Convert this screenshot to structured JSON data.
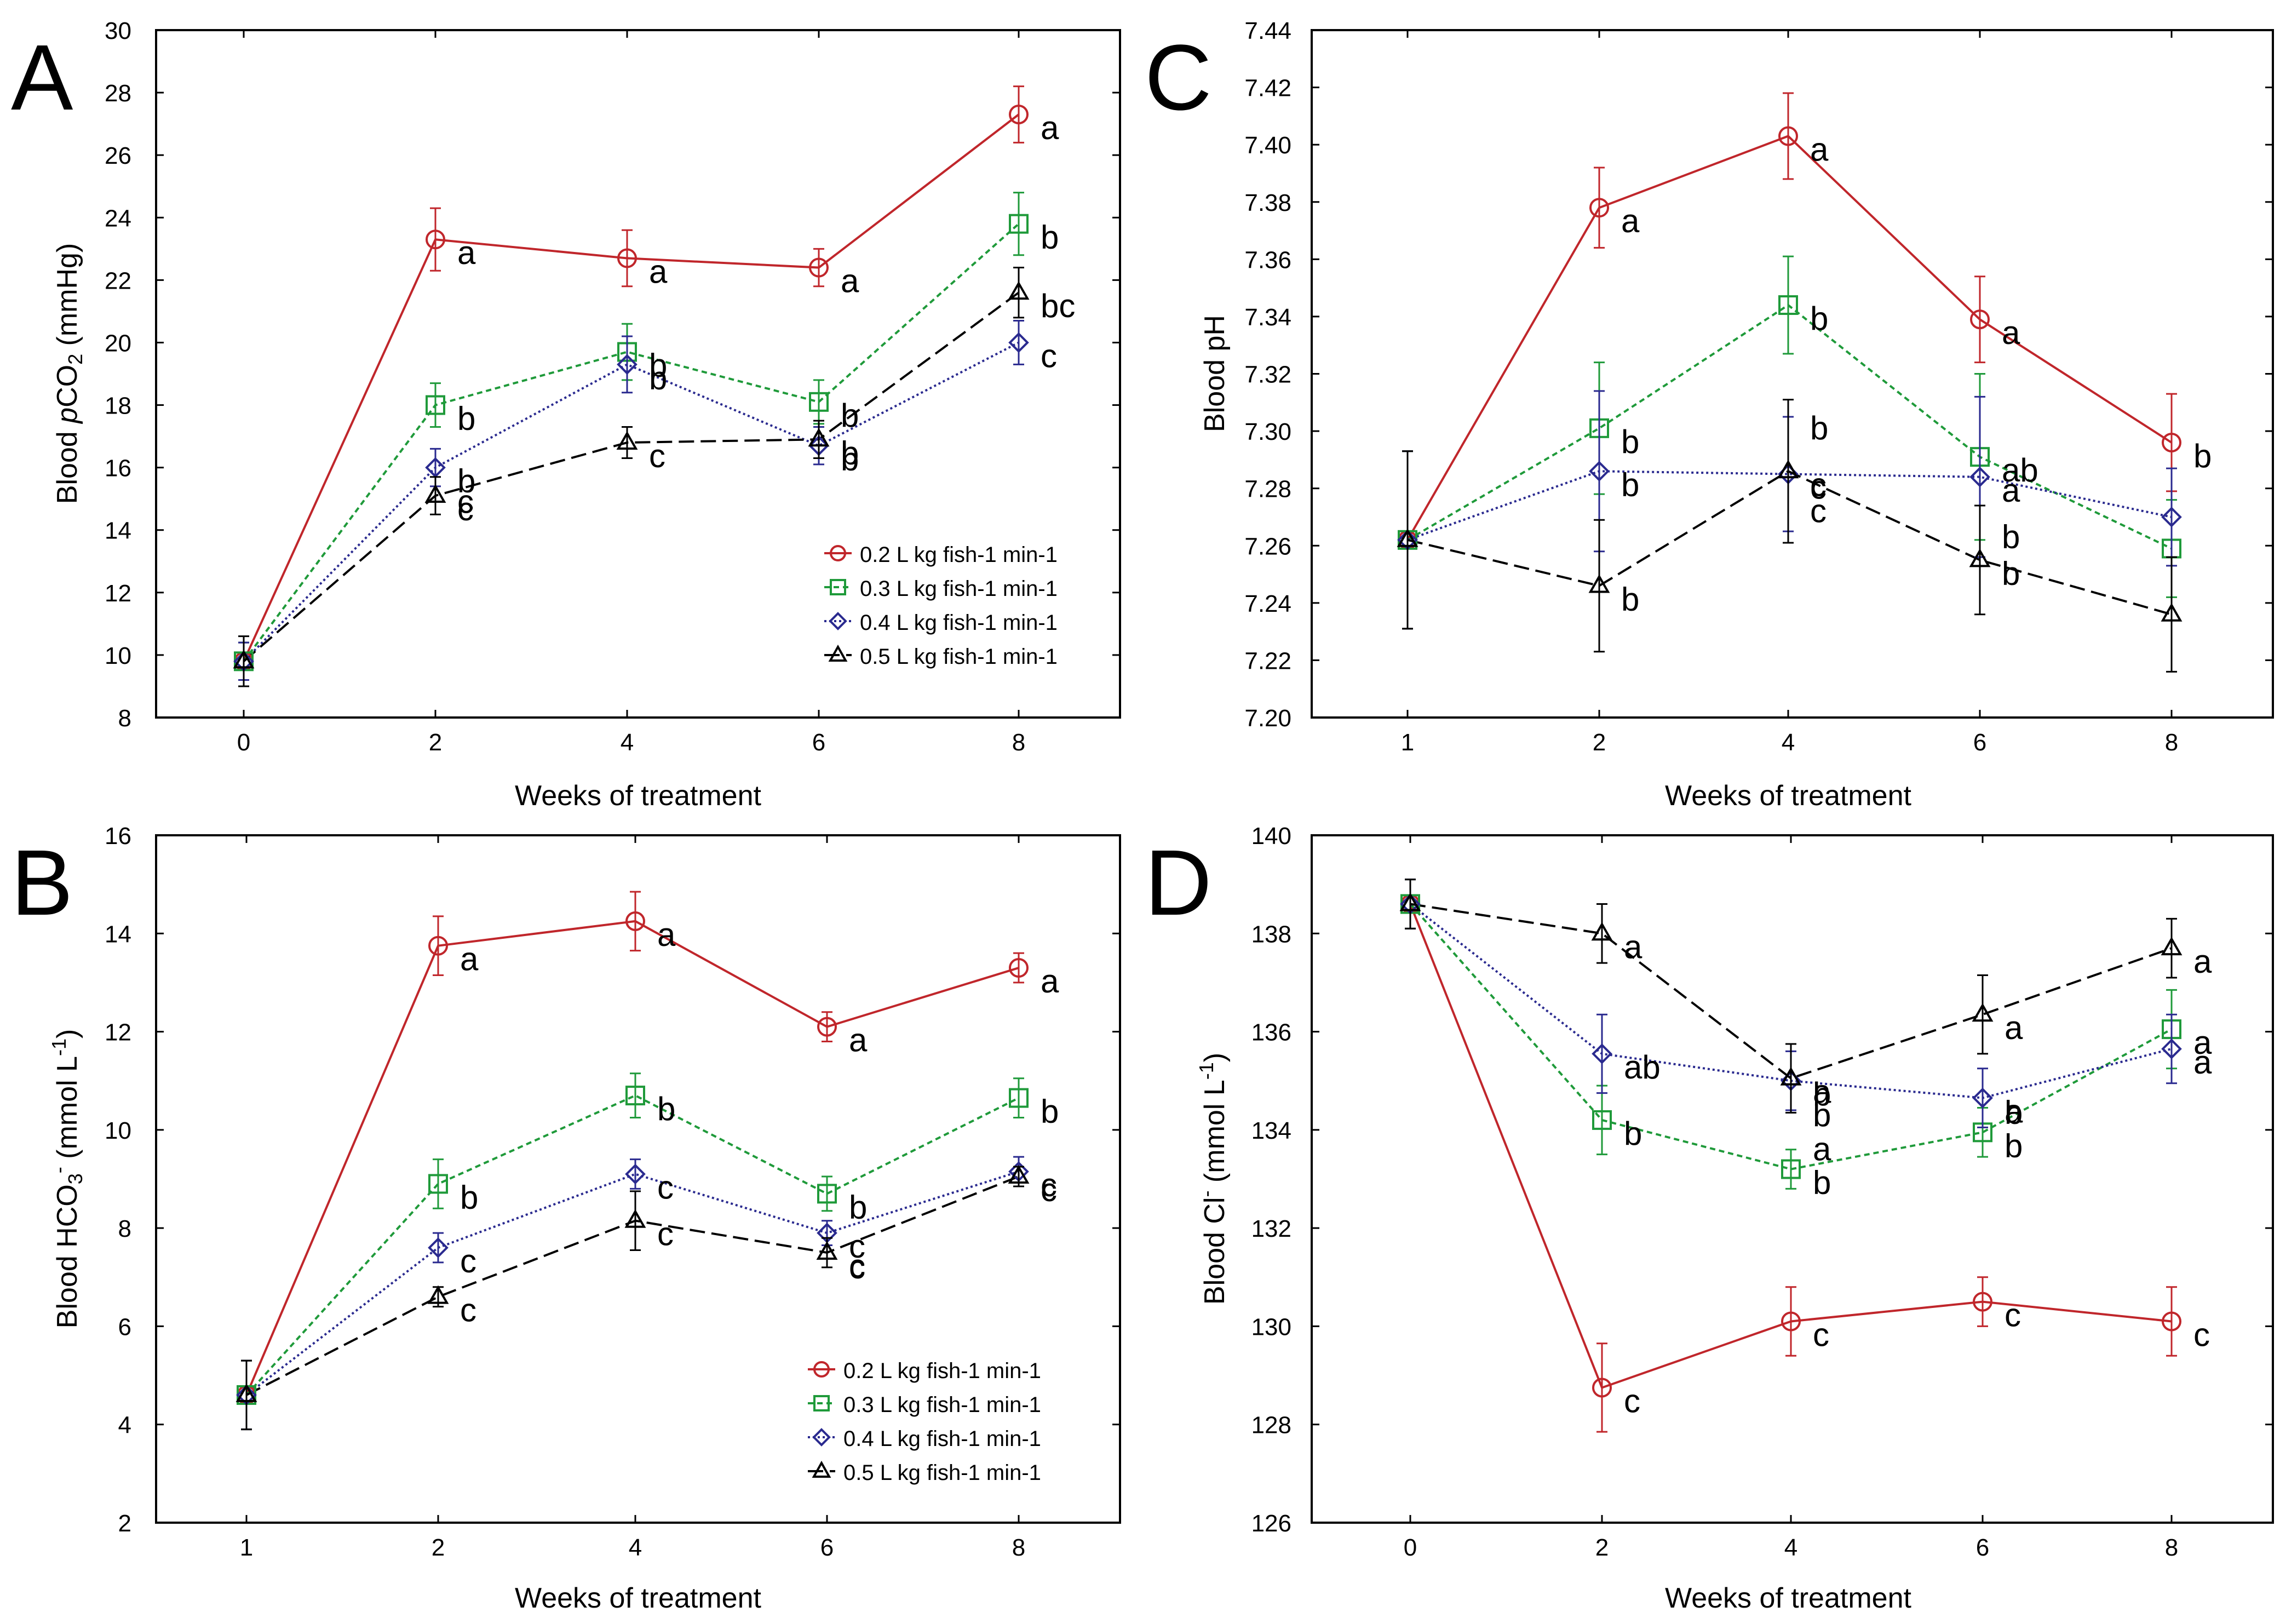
{
  "legend_entries": [
    "0.2 L kg fish-1 min-1",
    "0.3 L kg fish-1 min-1",
    "0.4 L kg fish-1 min-1",
    "0.5 L kg fish-1 min-1"
  ],
  "series_colors": [
    "#c0262b",
    "#1f9a3a",
    "#2a2a8f",
    "#000000"
  ],
  "chart_data": [
    {
      "type": "line",
      "panel_letter": "A",
      "xlabel": "Weeks of treatment",
      "ylabel": "Blood pCO2 (mmHg)",
      "ylabel_parts": {
        "pre": "Blood ",
        "italic": "p",
        "main": "CO",
        "sub": "2",
        "post": " (mmHg)"
      },
      "x_ticks": [
        0,
        2,
        4,
        6,
        8
      ],
      "ylim": [
        8,
        30
      ],
      "y_ticks": [
        8,
        10,
        12,
        14,
        16,
        18,
        20,
        22,
        24,
        26,
        28,
        30
      ],
      "tick_decimals": 0,
      "has_legend": true,
      "series": [
        {
          "name": "0.2 L kg fish-1 min-1",
          "values": [
            9.8,
            23.3,
            22.7,
            22.4,
            27.3
          ],
          "err": [
            0.6,
            1.0,
            0.9,
            0.6,
            0.9
          ],
          "labels": [
            "",
            "a",
            "a",
            "a",
            "a"
          ]
        },
        {
          "name": "0.3 L kg fish-1 min-1",
          "values": [
            9.8,
            18.0,
            19.7,
            18.1,
            23.8
          ],
          "err": [
            0.6,
            0.7,
            0.9,
            0.7,
            1.0
          ],
          "labels": [
            "",
            "b",
            "b",
            "b",
            "b"
          ]
        },
        {
          "name": "0.4 L kg fish-1 min-1",
          "values": [
            9.8,
            16.0,
            19.3,
            16.7,
            20.0
          ],
          "err": [
            0.6,
            0.6,
            0.9,
            0.6,
            0.7
          ],
          "labels": [
            "",
            "b",
            "b",
            "b",
            "c"
          ]
        },
        {
          "name": "0.5 L kg fish-1 min-1",
          "values": [
            9.8,
            15.1,
            16.8,
            16.9,
            21.6
          ],
          "err": [
            0.8,
            0.6,
            0.5,
            0.6,
            0.8
          ],
          "labels": [
            "",
            "c",
            "c",
            "b",
            "bc"
          ]
        }
      ]
    },
    {
      "type": "line",
      "panel_letter": "B",
      "xlabel": "Weeks of treatment",
      "ylabel": "Blood HCO3- (mmol L-1)",
      "ylabel_parts": {
        "pre": "Blood ",
        "main": "HCO",
        "sub": "3",
        "sup": "-",
        "post": " (mmol L",
        "sup2": "-1",
        "end": ")"
      },
      "x_ticks": [
        1,
        2,
        4,
        6,
        8
      ],
      "ylim": [
        2,
        16
      ],
      "y_ticks": [
        2,
        4,
        6,
        8,
        10,
        12,
        14,
        16
      ],
      "tick_decimals": 0,
      "has_legend": true,
      "series": [
        {
          "name": "0.2 L kg fish-1 min-1",
          "values": [
            4.6,
            13.75,
            14.25,
            12.1,
            13.3
          ],
          "err": [
            0.7,
            0.6,
            0.6,
            0.3,
            0.3
          ],
          "labels": [
            "",
            "a",
            "a",
            "a",
            "a"
          ]
        },
        {
          "name": "0.3 L kg fish-1 min-1",
          "values": [
            4.6,
            8.9,
            10.7,
            8.7,
            10.65
          ],
          "err": [
            0.7,
            0.5,
            0.45,
            0.35,
            0.4
          ],
          "labels": [
            "",
            "b",
            "b",
            "b",
            "b"
          ]
        },
        {
          "name": "0.4 L kg fish-1 min-1",
          "values": [
            4.6,
            7.6,
            9.1,
            7.9,
            9.15
          ],
          "err": [
            0.7,
            0.3,
            0.3,
            0.25,
            0.3
          ],
          "labels": [
            "",
            "c",
            "c",
            "c",
            "c"
          ]
        },
        {
          "name": "0.5 L kg fish-1 min-1",
          "values": [
            4.6,
            6.6,
            8.15,
            7.5,
            9.05
          ],
          "err": [
            0.7,
            0.2,
            0.6,
            0.3,
            0.2
          ],
          "labels": [
            "",
            "c",
            "c",
            "c",
            "c"
          ]
        }
      ]
    },
    {
      "type": "line",
      "panel_letter": "C",
      "xlabel": "Weeks of treatment",
      "ylabel": "Blood pH",
      "ylabel_parts": {
        "pre": "Blood pH"
      },
      "x_ticks": [
        1,
        2,
        4,
        6,
        8
      ],
      "ylim": [
        7.2,
        7.44
      ],
      "y_ticks": [
        7.2,
        7.22,
        7.24,
        7.26,
        7.28,
        7.3,
        7.32,
        7.34,
        7.36,
        7.38,
        7.4,
        7.42,
        7.44
      ],
      "tick_decimals": 2,
      "has_legend": false,
      "series": [
        {
          "name": "0.2 L kg fish-1 min-1",
          "values": [
            7.262,
            7.378,
            7.403,
            7.339,
            7.296
          ],
          "err": [
            0.031,
            0.014,
            0.015,
            0.015,
            0.017
          ],
          "labels": [
            "",
            "a",
            "a",
            "a",
            "b"
          ]
        },
        {
          "name": "0.3 L kg fish-1 min-1",
          "values": [
            7.262,
            7.301,
            7.344,
            7.291,
            7.259
          ],
          "err": [
            0.031,
            0.023,
            0.017,
            0.029,
            0.017
          ],
          "labels": [
            "",
            "b",
            "b",
            "ab",
            ""
          ]
        },
        {
          "name": "0.4 L kg fish-1 min-1",
          "values": [
            7.262,
            7.286,
            7.285,
            7.284,
            7.27
          ],
          "err": [
            0.031,
            0.028,
            0.02,
            0.028,
            0.017
          ],
          "labels": [
            "",
            "b",
            "c",
            "a",
            ""
          ]
        },
        {
          "name": "0.5 L kg fish-1 min-1",
          "values": [
            7.262,
            7.246,
            7.286,
            7.255,
            7.236
          ],
          "err": [
            0.031,
            0.023,
            0.025,
            0.019,
            0.02
          ],
          "labels": [
            "",
            "b",
            "c",
            "b",
            ""
          ]
        }
      ]
    },
    {
      "type": "line",
      "panel_letter": "D",
      "xlabel": "Weeks of treatment",
      "ylabel": "Blood Cl- (mmol L-1)",
      "ylabel_parts": {
        "pre": "Blood ",
        "main": "Cl",
        "sup": "-",
        "post": " (mmol L",
        "sup2": "-1",
        "end": ")"
      },
      "x_ticks": [
        0,
        2,
        4,
        6,
        8
      ],
      "ylim": [
        126,
        140
      ],
      "y_ticks": [
        126,
        128,
        130,
        132,
        134,
        136,
        138,
        140
      ],
      "tick_decimals": 0,
      "has_legend": false,
      "series": [
        {
          "name": "0.2 L kg fish-1 min-1",
          "values": [
            138.6,
            128.75,
            130.1,
            130.5,
            130.1
          ],
          "err": [
            0.5,
            0.9,
            0.7,
            0.5,
            0.7
          ],
          "labels": [
            "",
            "c",
            "c",
            "c",
            "c"
          ]
        },
        {
          "name": "0.3 L kg fish-1 min-1",
          "values": [
            138.6,
            134.2,
            133.2,
            133.95,
            136.05
          ],
          "err": [
            0.5,
            0.7,
            0.4,
            0.5,
            0.8
          ],
          "labels": [
            "",
            "b",
            "b",
            "b",
            "a"
          ]
        },
        {
          "name": "0.4 L kg fish-1 min-1",
          "values": [
            138.6,
            135.55,
            135.0,
            134.65,
            135.65
          ],
          "err": [
            0.5,
            0.8,
            0.6,
            0.6,
            0.7
          ],
          "labels": [
            "",
            "ab",
            "b",
            "a",
            "a"
          ]
        },
        {
          "name": "0.5 L kg fish-1 min-1",
          "values": [
            138.6,
            138.0,
            135.05,
            136.35,
            137.7
          ],
          "err": [
            0.5,
            0.6,
            0.7,
            0.8,
            0.6
          ],
          "labels": [
            "",
            "a",
            "a",
            "a",
            "a"
          ]
        }
      ]
    }
  ],
  "extra_annotations": [
    {
      "panel": 0,
      "x_index": 1,
      "y": 14.9,
      "text": "c"
    },
    {
      "panel": 1,
      "x_index": 3,
      "y": 7.2,
      "text": "c"
    },
    {
      "panel": 2,
      "x_index": 2,
      "y": 7.301,
      "text": "b"
    },
    {
      "panel": 2,
      "x_index": 2,
      "y": 7.272,
      "text": "c"
    },
    {
      "panel": 2,
      "x_index": 3,
      "y": 7.263,
      "text": "b"
    },
    {
      "panel": 3,
      "x_index": 2,
      "y": 134.3,
      "text": "b"
    },
    {
      "panel": 3,
      "x_index": 2,
      "y": 133.6,
      "text": "a"
    },
    {
      "panel": 3,
      "x_index": 3,
      "y": 134.35,
      "text": "b"
    }
  ]
}
